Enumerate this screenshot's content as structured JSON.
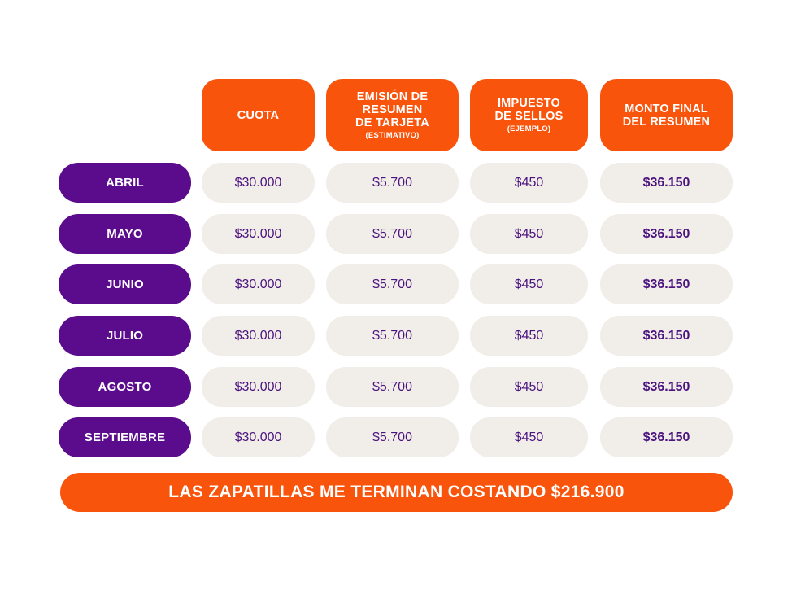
{
  "headers": [
    {
      "lines": [
        "CUOTA"
      ],
      "sub": ""
    },
    {
      "lines": [
        "EMISIÓN DE",
        "RESUMEN",
        "DE TARJETA"
      ],
      "sub": "(ESTIMATIVO)"
    },
    {
      "lines": [
        "IMPUESTO",
        "DE SELLOS"
      ],
      "sub": "(EJEMPLO)"
    },
    {
      "lines": [
        "MONTO FINAL",
        "DEL RESUMEN"
      ],
      "sub": ""
    }
  ],
  "rows": [
    {
      "month": "ABRIL",
      "cuota": "$30.000",
      "emision": "$5.700",
      "impuesto": "$450",
      "monto": "$36.150"
    },
    {
      "month": "MAYO",
      "cuota": "$30.000",
      "emision": "$5.700",
      "impuesto": "$450",
      "monto": "$36.150"
    },
    {
      "month": "JUNIO",
      "cuota": "$30.000",
      "emision": "$5.700",
      "impuesto": "$450",
      "monto": "$36.150"
    },
    {
      "month": "JULIO",
      "cuota": "$30.000",
      "emision": "$5.700",
      "impuesto": "$450",
      "monto": "$36.150"
    },
    {
      "month": "AGOSTO",
      "cuota": "$30.000",
      "emision": "$5.700",
      "impuesto": "$450",
      "monto": "$36.150"
    },
    {
      "month": "SEPTIEMBRE",
      "cuota": "$30.000",
      "emision": "$5.700",
      "impuesto": "$450",
      "monto": "$36.150"
    }
  ],
  "footer": "LAS ZAPATILLAS ME TERMINAN COSTANDO $216.900",
  "colors": {
    "orange": "#f9540c",
    "purple": "#5a0c8c",
    "cell_bg": "#f1ede9",
    "cell_text": "#4a137e"
  }
}
